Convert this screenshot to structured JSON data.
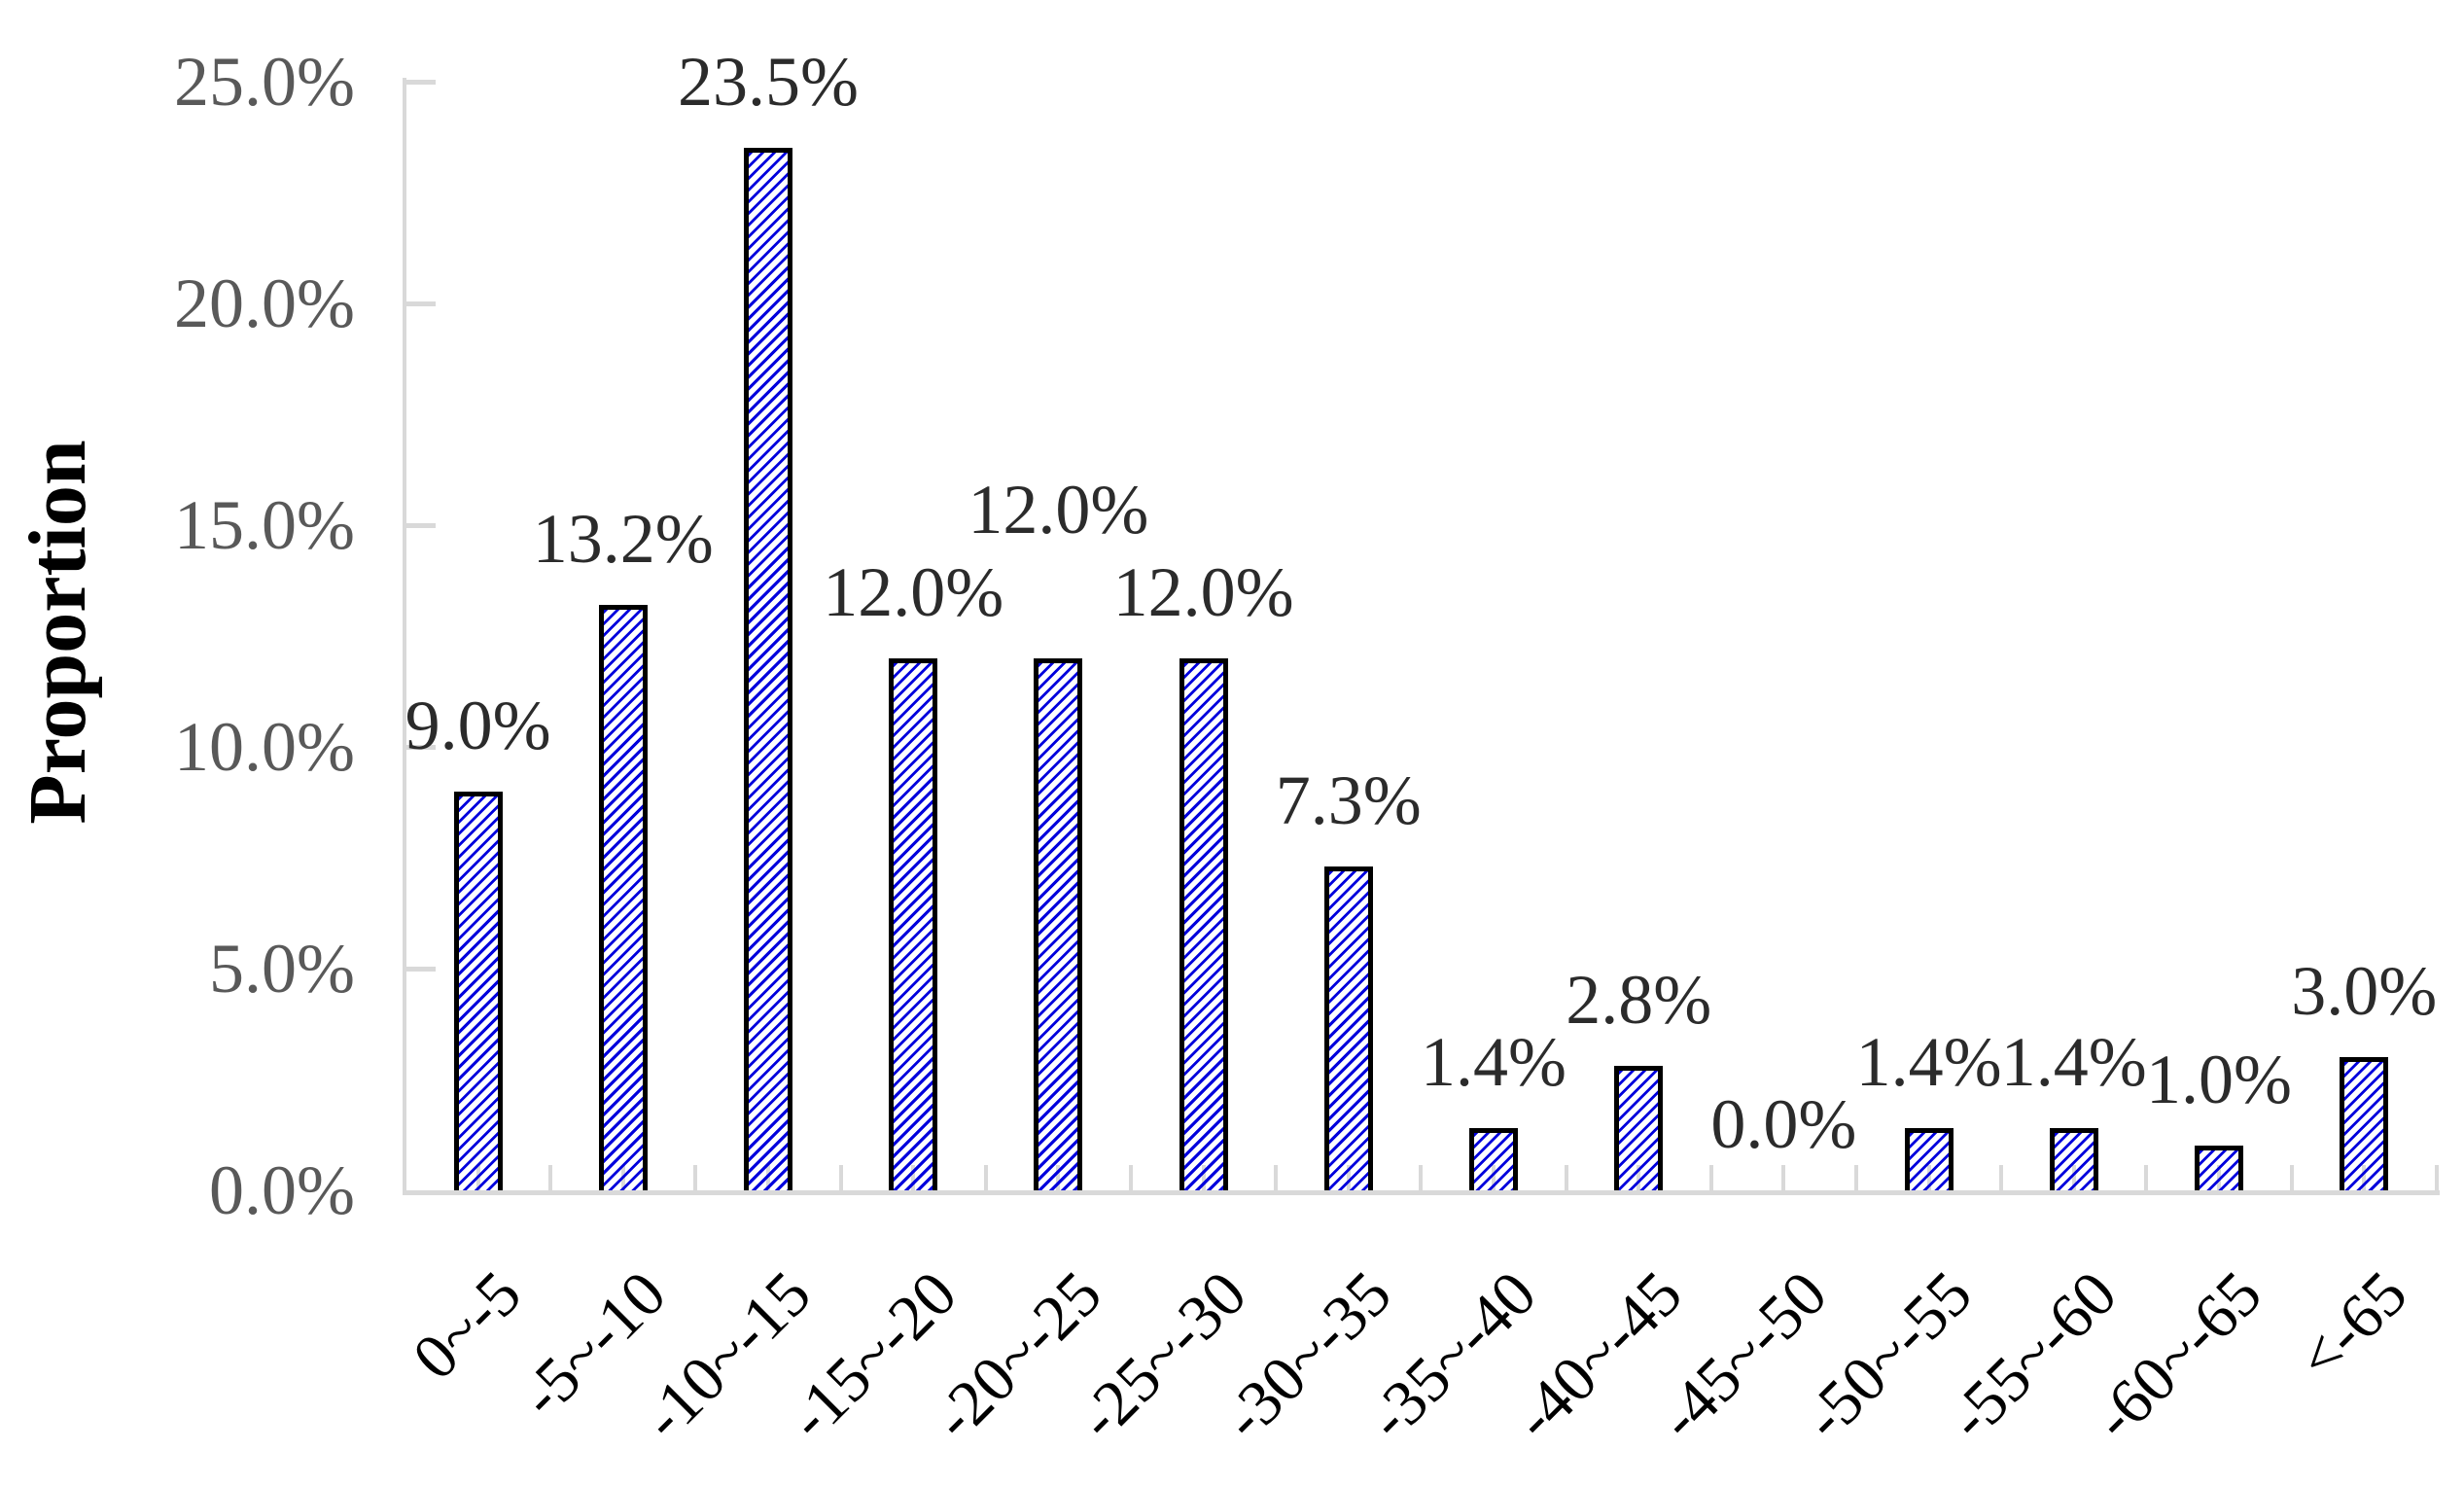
{
  "chart_data": {
    "type": "bar",
    "title": "",
    "xlabel": "",
    "ylabel": "Proportion",
    "categories": [
      "0~-5",
      "-5~-10",
      "-10~-15",
      "-15~-20",
      "-20~-25",
      "-25~-30",
      "-30~-35",
      "-35~-40",
      "-40~-45",
      "-45~-50",
      "-50~-55",
      "-55~-60",
      "-60~-65",
      "<-65"
    ],
    "values": [
      9.0,
      13.2,
      23.5,
      12.0,
      12.0,
      12.0,
      7.3,
      1.4,
      2.8,
      0.0,
      1.4,
      1.4,
      1.0,
      3.0
    ],
    "data_labels": [
      "9.0%",
      "13.2%",
      "23.5%",
      "12.0%",
      "12.0%",
      "12.0%",
      "7.3%",
      "1.4%",
      "2.8%",
      "0.0%",
      "1.4%",
      "1.4%",
      "1.0%",
      "3.0%"
    ],
    "y_ticks": [
      "0.0%",
      "5.0%",
      "10.0%",
      "15.0%",
      "20.0%",
      "25.0%"
    ],
    "ylim": [
      0,
      25
    ],
    "y_tick_interval": 5,
    "grid": false,
    "legend": "none",
    "bar_style": "diagonal-hatch",
    "x_label_rotation_deg": 45,
    "colors": {
      "hatch_blue": "#0000dd",
      "bar_border": "#000000",
      "axis_gray": "#d9d9d9",
      "y_tick_text": "#595959",
      "data_label_text": "#2b2b2b",
      "category_text": "#000000",
      "ylabel_text": "#000000",
      "background": "#ffffff"
    }
  }
}
